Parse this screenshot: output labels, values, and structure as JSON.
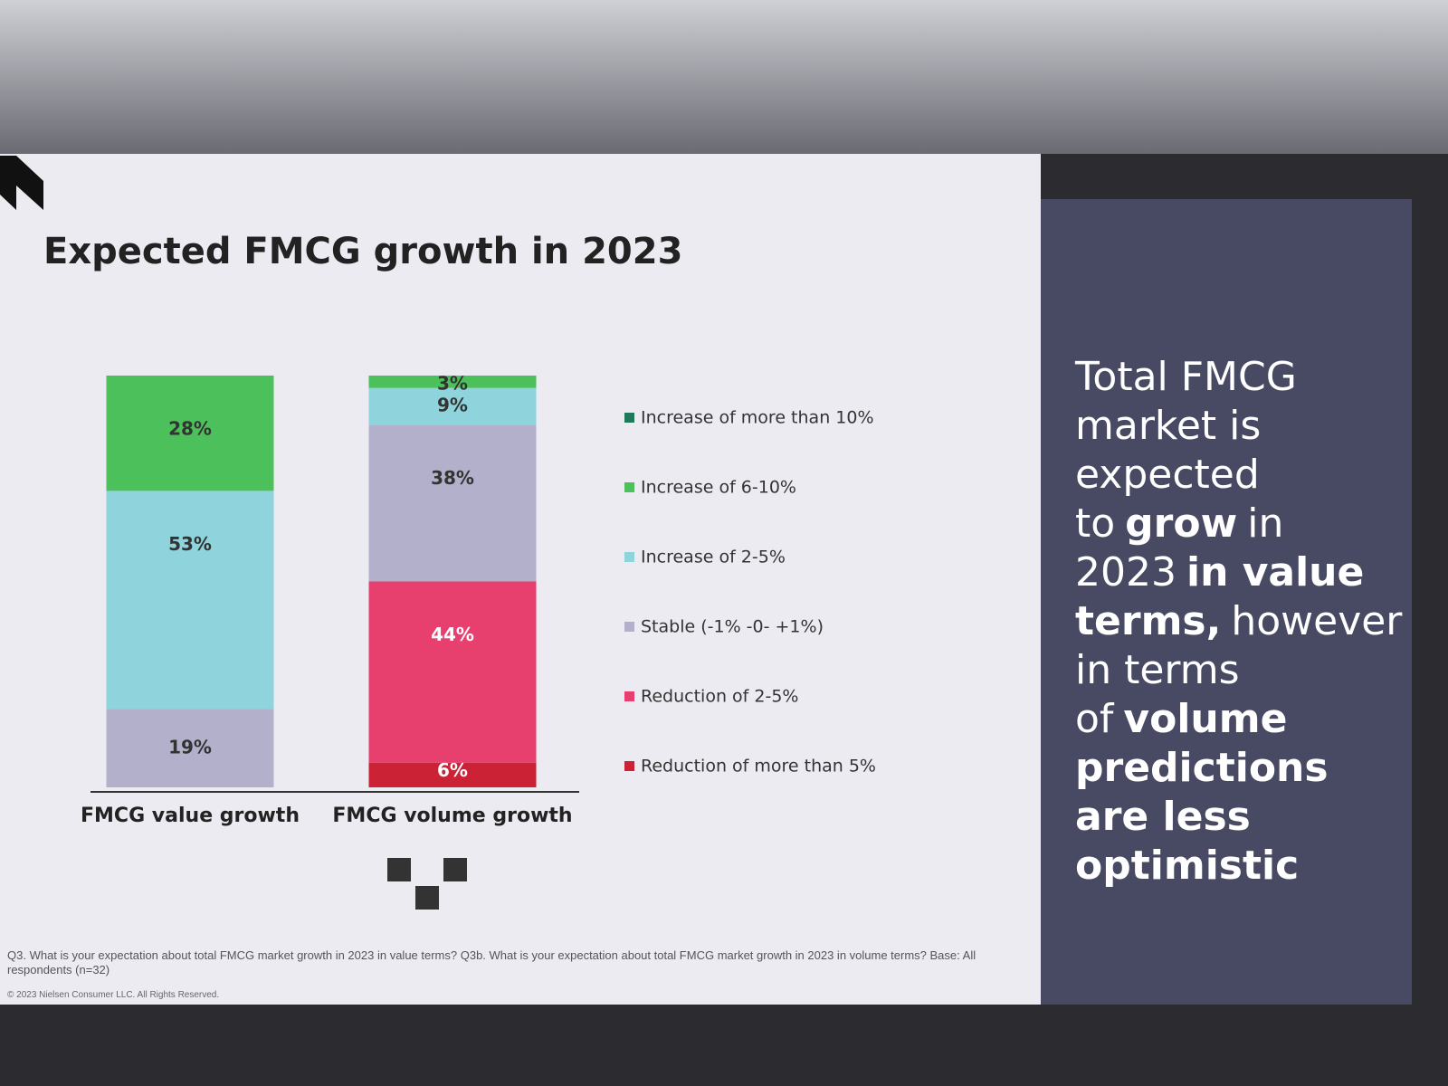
{
  "chart_data": {
    "type": "stacked_bar",
    "title": "Expected FMCG growth in 2023",
    "categories": [
      "FMCG value growth",
      "FMCG volume growth"
    ],
    "ylim": [
      0,
      100
    ],
    "series": [
      {
        "name": "Increase of more than 10%",
        "color": "#1f7a5a",
        "values": [
          0,
          0
        ],
        "value_labels": [
          null,
          null
        ]
      },
      {
        "name": "Increase of 6-10%",
        "color": "#4cc05a",
        "values": [
          28,
          3
        ],
        "value_labels": [
          "28%",
          "3%"
        ]
      },
      {
        "name": "Increase of 2-5%",
        "color": "#8fd3dc",
        "values": [
          53,
          9
        ],
        "value_labels": [
          "53%",
          "9%"
        ]
      },
      {
        "name": "Stable (-1% -0- +1%)",
        "color": "#b3b0cc",
        "values": [
          19,
          38
        ],
        "value_labels": [
          "19%",
          "38%"
        ]
      },
      {
        "name": "Reduction of 2-5%",
        "color": "#e8406e",
        "values": [
          0,
          44
        ],
        "value_labels": [
          null,
          "44%"
        ]
      },
      {
        "name": "Reduction of more than 5%",
        "color": "#cc2236",
        "values": [
          0,
          6
        ],
        "value_labels": [
          null,
          "6%"
        ]
      }
    ]
  },
  "side_panel": {
    "segments": [
      {
        "text": "Total FMCG market is expected to",
        "bold": false
      },
      {
        "text": "grow",
        "bold": true
      },
      {
        "text": "in 2023",
        "bold": false
      },
      {
        "text": "in value terms,",
        "bold": true
      },
      {
        "text": "however in terms of",
        "bold": false
      },
      {
        "text": "volume predictions are less optimistic",
        "bold": true
      }
    ]
  },
  "footnote": "Q3. What is your expectation about total FMCG market growth in 2023 in value terms? Q3b. What is your expectation about total FMCG market growth in 2023 in volume terms? Base: All respondents (n=32)",
  "copyright": "© 2023 Nielsen Consumer LLC. All Rights Reserved."
}
